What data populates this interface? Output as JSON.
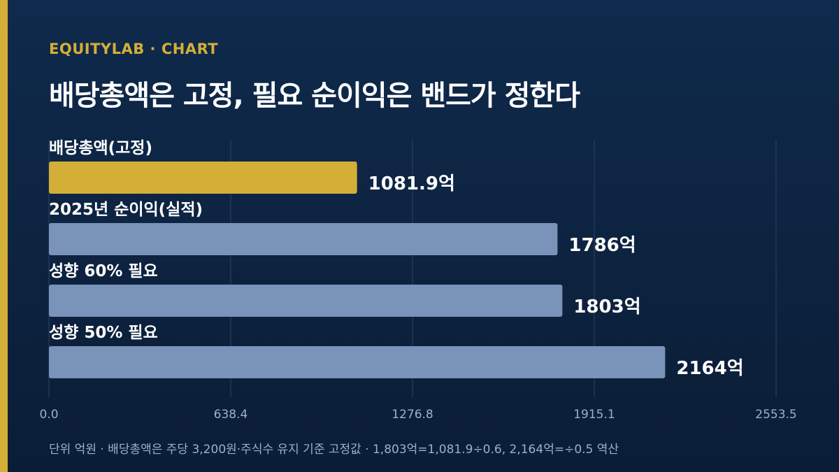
{
  "header": {
    "brand": "EQUITYLAB · CHART",
    "title": "배당총액은 고정, 필요 순이익은 밴드가 정한다"
  },
  "footnote": "단위 억원 · 배당총액은 주당 3,200원·주식수 유지 기준 고정값 · 1,803억=1,081.9÷0.6, 2,164억=÷0.5 역산",
  "colors": {
    "accent": "#d4af37",
    "bar": "#7a93b8",
    "grid": "#2c4366",
    "tick": "#9fb0c8"
  },
  "chart_data": {
    "type": "bar",
    "orientation": "horizontal",
    "categories": [
      "배당총액(고정)",
      "2025년 순이익(실적)",
      "성향 60% 필요",
      "성향 50% 필요"
    ],
    "values": [
      1081.9,
      1786,
      1803,
      2164
    ],
    "value_labels": [
      "1081.9억",
      "1786억",
      "1803억",
      "2164억"
    ],
    "highlight_index": 0,
    "xlim": [
      0,
      2553.5
    ],
    "xticks": [
      0,
      638.4,
      1276.8,
      1915.1,
      2553.5
    ],
    "xtick_labels": [
      "0.0",
      "638.4",
      "1276.8",
      "1915.1",
      "2553.5"
    ],
    "grid": true,
    "unit": "억원"
  }
}
